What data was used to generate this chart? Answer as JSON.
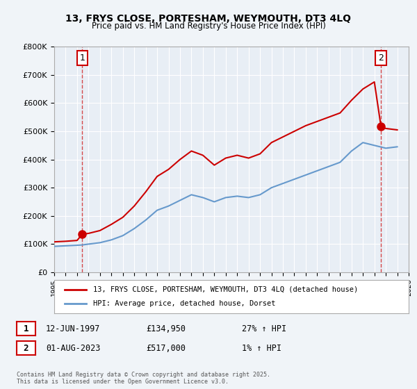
{
  "title1": "13, FRYS CLOSE, PORTESHAM, WEYMOUTH, DT3 4LQ",
  "title2": "Price paid vs. HM Land Registry's House Price Index (HPI)",
  "ylabel": "",
  "background_color": "#f0f4f8",
  "plot_bg_color": "#e8eef5",
  "legend_line1": "13, FRYS CLOSE, PORTESHAM, WEYMOUTH, DT3 4LQ (detached house)",
  "legend_line2": "HPI: Average price, detached house, Dorset",
  "sale1_label": "1",
  "sale1_date": "12-JUN-1997",
  "sale1_price": "£134,950",
  "sale1_hpi": "27% ↑ HPI",
  "sale2_label": "2",
  "sale2_date": "01-AUG-2023",
  "sale2_price": "£517,000",
  "sale2_hpi": "1% ↑ HPI",
  "copyright": "Contains HM Land Registry data © Crown copyright and database right 2025.\nThis data is licensed under the Open Government Licence v3.0.",
  "xmin": 1995,
  "xmax": 2026,
  "ymin": 0,
  "ymax": 800000,
  "sale1_year": 1997.45,
  "sale2_year": 2023.58,
  "red_color": "#cc0000",
  "blue_color": "#6699cc",
  "grid_color": "#ffffff",
  "hpi_line": {
    "years": [
      1995,
      1996,
      1997,
      1997.45,
      1998,
      1999,
      2000,
      2001,
      2002,
      2003,
      2004,
      2005,
      2006,
      2007,
      2008,
      2009,
      2010,
      2011,
      2012,
      2013,
      2014,
      2015,
      2016,
      2017,
      2018,
      2019,
      2020,
      2021,
      2022,
      2023,
      2024,
      2025
    ],
    "values": [
      92000,
      94000,
      96000,
      97000,
      100000,
      105000,
      115000,
      130000,
      155000,
      185000,
      220000,
      235000,
      255000,
      275000,
      265000,
      250000,
      265000,
      270000,
      265000,
      275000,
      300000,
      315000,
      330000,
      345000,
      360000,
      375000,
      390000,
      430000,
      460000,
      450000,
      440000,
      445000
    ]
  },
  "price_line": {
    "years": [
      1995,
      1996,
      1997,
      1997.45,
      1998,
      1999,
      2000,
      2001,
      2002,
      2003,
      2004,
      2005,
      2006,
      2007,
      2008,
      2009,
      2010,
      2011,
      2012,
      2013,
      2014,
      2015,
      2016,
      2017,
      2018,
      2019,
      2020,
      2021,
      2022,
      2023,
      2023.58,
      2024,
      2025
    ],
    "values": [
      108000,
      110000,
      113000,
      134950,
      138000,
      148000,
      170000,
      195000,
      235000,
      285000,
      340000,
      365000,
      400000,
      430000,
      415000,
      380000,
      405000,
      415000,
      405000,
      420000,
      460000,
      480000,
      500000,
      520000,
      535000,
      550000,
      565000,
      610000,
      650000,
      675000,
      517000,
      510000,
      505000
    ]
  }
}
